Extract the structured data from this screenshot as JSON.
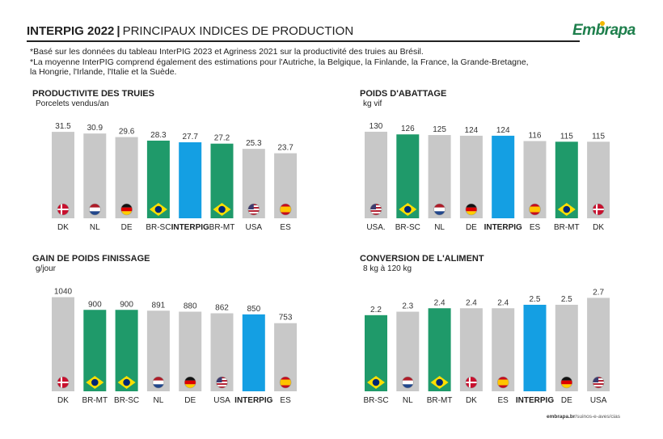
{
  "header": {
    "title_bold": "INTERPIG 2022",
    "separator": "|",
    "title_rest": "PRINCIPAUX INDICES DE PRODUCTION",
    "logo": "Embrapa"
  },
  "notes": [
    "*Basé sur les données du tableau InterPIG 2023 et Agriness 2021 sur la productivité des truies au Brésil.",
    "*La moyenne InterPIG comprend également des estimations pour l'Autriche, la Belgique, la Finlande, la France, la Grande-Bretagne,",
    "la Hongrie, l'Irlande, l'Italie et la Suède."
  ],
  "footer": {
    "domain": "embrapa.br",
    "path": "/suinos-e-aves/cias"
  },
  "colors": {
    "gray": "#c8c8c8",
    "green": "#1f9a6a",
    "blue": "#149fe3"
  },
  "chart_data": [
    {
      "type": "bar",
      "title": "PRODUCTIVITE DES TRUIES",
      "subtitle": "Porcelets vendus/an",
      "categories": [
        "DK",
        "NL",
        "DE",
        "BR-SC",
        "INTERPIG",
        "BR-MT",
        "USA",
        "ES"
      ],
      "values": [
        31.5,
        30.9,
        29.6,
        28.3,
        27.7,
        27.2,
        25.3,
        23.7
      ],
      "value_labels": [
        "31.5",
        "30.9",
        "29.6",
        "28.3",
        "27.7",
        "27.2",
        "25.3",
        "23.7"
      ],
      "flags": [
        "DK",
        "NL",
        "DE",
        "BR",
        null,
        "BR",
        "US",
        "ES"
      ],
      "colors": [
        "gray",
        "gray",
        "gray",
        "green",
        "blue",
        "green",
        "gray",
        "gray"
      ],
      "ylim": [
        0,
        33
      ]
    },
    {
      "type": "bar",
      "title": "POIDS D'ABATTAGE",
      "subtitle": "kg vif",
      "categories": [
        "USA.",
        "BR-SC",
        "NL",
        "DE",
        "INTERPIG",
        "ES",
        "BR-MT",
        "DK"
      ],
      "values": [
        130,
        126,
        125,
        124,
        124,
        116,
        115,
        115
      ],
      "value_labels": [
        "130",
        "126",
        "125",
        "124",
        "124",
        "116",
        "115",
        "115"
      ],
      "flags": [
        "US",
        "BR",
        "NL",
        "DE",
        null,
        "ES",
        "BR",
        "DK"
      ],
      "colors": [
        "gray",
        "green",
        "gray",
        "gray",
        "blue",
        "gray",
        "green",
        "gray"
      ],
      "ylim": [
        0,
        136
      ]
    },
    {
      "type": "bar",
      "title": "GAIN DE POIDS FINISSAGE",
      "subtitle": "g/jour",
      "categories": [
        "DK",
        "BR-MT",
        "BR-SC",
        "NL",
        "DE",
        "USA",
        "INTERPIG",
        "ES"
      ],
      "values": [
        1040,
        900,
        900,
        891,
        880,
        862,
        850,
        753
      ],
      "value_labels": [
        "1040",
        "900",
        "900",
        "891",
        "880",
        "862",
        "850",
        "753"
      ],
      "flags": [
        "DK",
        "BR",
        "BR",
        "NL",
        "DE",
        "US",
        null,
        "ES"
      ],
      "colors": [
        "gray",
        "green",
        "green",
        "gray",
        "gray",
        "gray",
        "blue",
        "gray"
      ],
      "ylim": [
        0,
        1090
      ]
    },
    {
      "type": "bar",
      "title": "CONVERSION DE L'ALIMENT",
      "subtitle": "8 kg à 120 kg",
      "categories": [
        "BR-SC",
        "NL",
        "BR-MT",
        "DK",
        "ES",
        "INTERPIG",
        "DE",
        "USA"
      ],
      "values": [
        2.2,
        2.3,
        2.4,
        2.4,
        2.4,
        2.5,
        2.5,
        2.7
      ],
      "value_labels": [
        "2.2",
        "2.3",
        "2.4",
        "2.4",
        "2.4",
        "2.5",
        "2.5",
        "2.7"
      ],
      "flags": [
        "BR",
        "NL",
        "BR",
        "DK",
        "ES",
        null,
        "DE",
        "US"
      ],
      "colors": [
        "green",
        "gray",
        "green",
        "gray",
        "gray",
        "blue",
        "gray",
        "gray"
      ],
      "ylim": [
        0,
        2.85
      ]
    }
  ]
}
